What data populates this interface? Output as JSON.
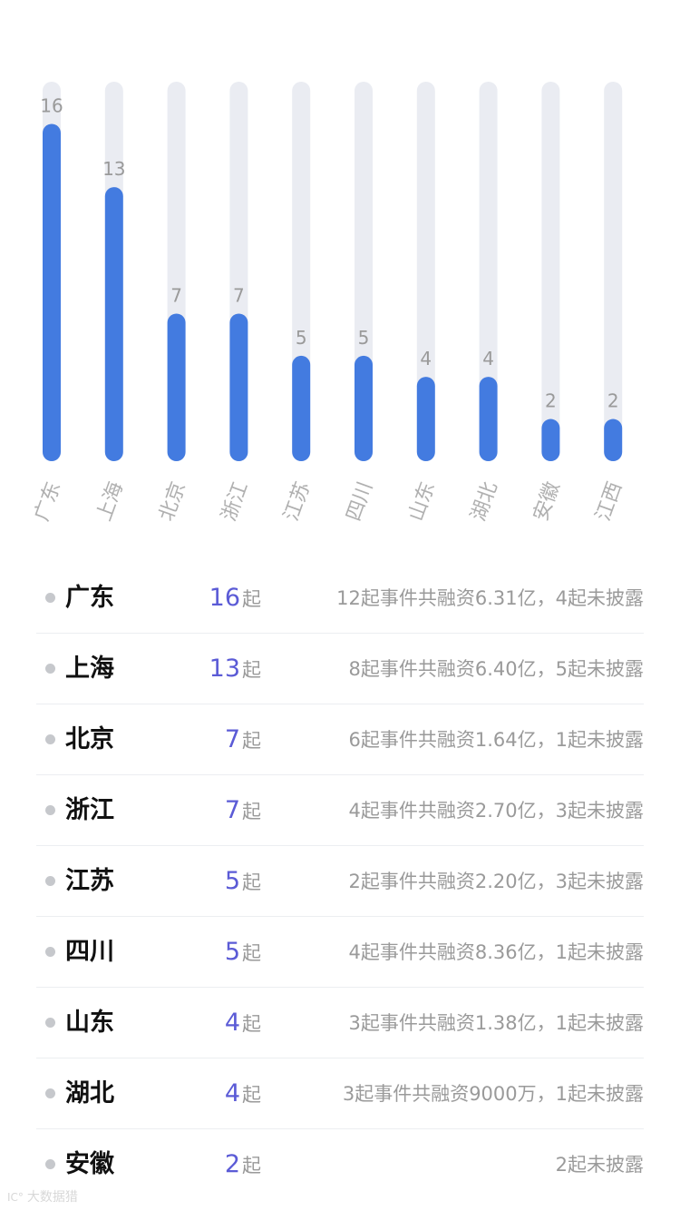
{
  "chart_data": {
    "type": "bar",
    "categories": [
      "广东",
      "上海",
      "北京",
      "浙江",
      "江苏",
      "四川",
      "山东",
      "湖北",
      "安徽",
      "江西"
    ],
    "values": [
      16,
      13,
      7,
      7,
      5,
      5,
      4,
      4,
      2,
      2
    ],
    "ylim": [
      0,
      18
    ],
    "grid": false,
    "colors": {
      "bar": "#437be0",
      "track": "#eaecf2",
      "value_label": "#9a9a9a",
      "tick_label": "#b0b0b0"
    }
  },
  "list": {
    "unit": "起",
    "items": [
      {
        "province": "广东",
        "count": "16",
        "desc": "12起事件共融资6.31亿，4起未披露"
      },
      {
        "province": "上海",
        "count": "13",
        "desc": "8起事件共融资6.40亿，5起未披露"
      },
      {
        "province": "北京",
        "count": "7",
        "desc": "6起事件共融资1.64亿，1起未披露"
      },
      {
        "province": "浙江",
        "count": "7",
        "desc": "4起事件共融资2.70亿，3起未披露"
      },
      {
        "province": "江苏",
        "count": "5",
        "desc": "2起事件共融资2.20亿，3起未披露"
      },
      {
        "province": "四川",
        "count": "5",
        "desc": "4起事件共融资8.36亿，1起未披露"
      },
      {
        "province": "山东",
        "count": "4",
        "desc": "3起事件共融资1.38亿，1起未披露"
      },
      {
        "province": "湖北",
        "count": "4",
        "desc": "3起事件共融资9000万，1起未披露"
      },
      {
        "province": "安徽",
        "count": "2",
        "desc": "2起未披露"
      }
    ],
    "colors": {
      "count": "#5b5bd6",
      "dot": "#c6c8cc"
    }
  },
  "watermark": {
    "logo": "IC°",
    "text": "大数据猎"
  }
}
